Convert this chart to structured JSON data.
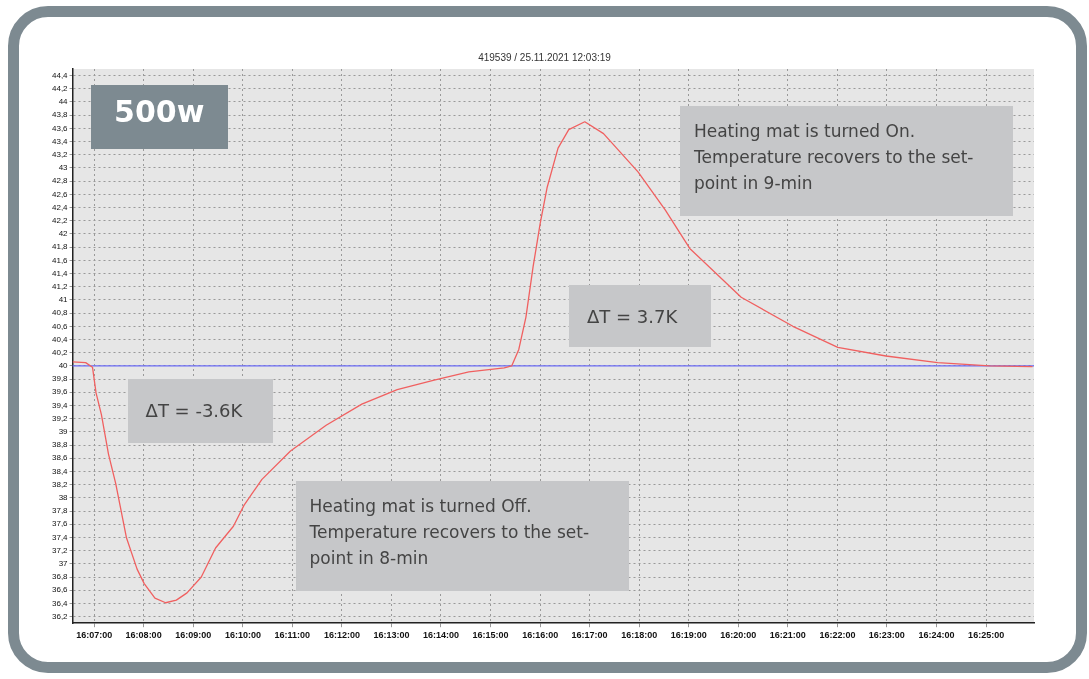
{
  "chart_data": {
    "type": "line",
    "title": "419539 / 25.11.2021 12:03:19",
    "annotations": [
      "500w",
      "ΔT = -3.6K",
      "Heating mat is turned Off. Temperature recovers to the set-point in 8-min",
      "ΔT = 3.7K",
      "Heating mat is turned On. Temperature recovers to the set-point in 9-min"
    ],
    "series": [
      {
        "color": "#f06060",
        "x": [
          16.1094,
          16.1138,
          16.1161,
          16.1173,
          16.1191,
          16.1215,
          16.1239,
          16.1275,
          16.1311,
          16.1335,
          16.1371,
          16.1407,
          16.1443,
          16.1479,
          16.1527,
          16.1575,
          16.1635,
          16.1671,
          16.1731,
          16.1827,
          16.1947,
          16.2067,
          16.2186,
          16.2307,
          16.2427,
          16.2546,
          16.2571,
          16.2595,
          16.2619,
          16.2643,
          16.2667,
          16.269,
          16.2727,
          16.2763,
          16.2817,
          16.288,
          16.2996,
          16.3088,
          16.317,
          16.3343,
          16.3517,
          16.3668,
          16.383,
          16.4004,
          16.4178,
          16.4323
        ],
        "values": [
          40.06,
          40.05,
          39.98,
          39.59,
          39.26,
          38.66,
          38.22,
          37.4,
          36.92,
          36.7,
          36.48,
          36.41,
          36.45,
          36.56,
          36.8,
          37.24,
          37.57,
          37.89,
          38.28,
          38.71,
          39.1,
          39.42,
          39.64,
          39.78,
          39.91,
          39.97,
          40.0,
          40.25,
          40.74,
          41.5,
          42.16,
          42.7,
          43.3,
          43.58,
          43.7,
          43.52,
          42.94,
          42.36,
          41.78,
          41.04,
          40.6,
          40.28,
          40.15,
          40.05,
          40.0,
          39.99
        ]
      }
    ],
    "ref_lines": [
      {
        "axis": "y",
        "value": 40,
        "label": null,
        "color": "#6b6bf5"
      }
    ],
    "xlim": [
      16.1094,
      16.4328
    ],
    "xticks": [
      {
        "value": 16.1167,
        "label": "16:07:00"
      },
      {
        "value": 16.1333,
        "label": "16:08:00"
      },
      {
        "value": 16.15,
        "label": "16:09:00"
      },
      {
        "value": 16.1667,
        "label": "16:10:00"
      },
      {
        "value": 16.1833,
        "label": "16:11:00"
      },
      {
        "value": 16.2,
        "label": "16:12:00"
      },
      {
        "value": 16.2167,
        "label": "16:13:00"
      },
      {
        "value": 16.2333,
        "label": "16:14:00"
      },
      {
        "value": 16.25,
        "label": "16:15:00"
      },
      {
        "value": 16.2667,
        "label": "16:16:00"
      },
      {
        "value": 16.2833,
        "label": "16:17:00"
      },
      {
        "value": 16.3,
        "label": "16:18:00"
      },
      {
        "value": 16.3167,
        "label": "16:19:00"
      },
      {
        "value": 16.3333,
        "label": "16:20:00"
      },
      {
        "value": 16.35,
        "label": "16:21:00"
      },
      {
        "value": 16.3667,
        "label": "16:22:00"
      },
      {
        "value": 16.3833,
        "label": "16:23:00"
      },
      {
        "value": 16.4,
        "label": "16:24:00"
      },
      {
        "value": 16.4167,
        "label": "16:25:00"
      }
    ],
    "ylim": [
      36.1,
      44.5
    ],
    "yticks": [
      {
        "value": 36.2,
        "label": "36,2"
      },
      {
        "value": 36.4,
        "label": "36,4"
      },
      {
        "value": 36.6,
        "label": "36,6"
      },
      {
        "value": 36.8,
        "label": "36,8"
      },
      37,
      {
        "value": 37.2,
        "label": "37,2"
      },
      {
        "value": 37.4,
        "label": "37,4"
      },
      {
        "value": 37.6,
        "label": "37,6"
      },
      {
        "value": 37.8,
        "label": "37,8"
      },
      38,
      {
        "value": 38.2,
        "label": "38,2"
      },
      {
        "value": 38.4,
        "label": "38,4"
      },
      {
        "value": 38.6,
        "label": "38,6"
      },
      {
        "value": 38.8,
        "label": "38,8"
      },
      39,
      {
        "value": 39.2,
        "label": "39,2"
      },
      {
        "value": 39.4,
        "label": "39,4"
      },
      {
        "value": 39.6,
        "label": "39,6"
      },
      {
        "value": 39.8,
        "label": "39,8"
      },
      40,
      {
        "value": 40.2,
        "label": "40,2"
      },
      {
        "value": 40.4,
        "label": "40,4"
      },
      {
        "value": 40.6,
        "label": "40,6"
      },
      {
        "value": 40.8,
        "label": "40,8"
      },
      41,
      {
        "value": 41.2,
        "label": "41,2"
      },
      {
        "value": 41.4,
        "label": "41,4"
      },
      {
        "value": 41.6,
        "label": "41,6"
      },
      {
        "value": 41.8,
        "label": "41,8"
      },
      42,
      {
        "value": 42.2,
        "label": "42,2"
      },
      {
        "value": 42.4,
        "label": "42,4"
      },
      {
        "value": 42.6,
        "label": "42,6"
      },
      {
        "value": 42.8,
        "label": "42,8"
      },
      43,
      {
        "value": 43.2,
        "label": "43,2"
      },
      {
        "value": 43.4,
        "label": "43,4"
      },
      {
        "value": 43.6,
        "label": "43,6"
      },
      {
        "value": 43.8,
        "label": "43,8"
      },
      44,
      {
        "value": 44.2,
        "label": "44,2"
      },
      {
        "value": 44.4,
        "label": "44,4"
      }
    ],
    "grid": true,
    "legend": false,
    "marker": "none",
    "line_style": "solid"
  }
}
